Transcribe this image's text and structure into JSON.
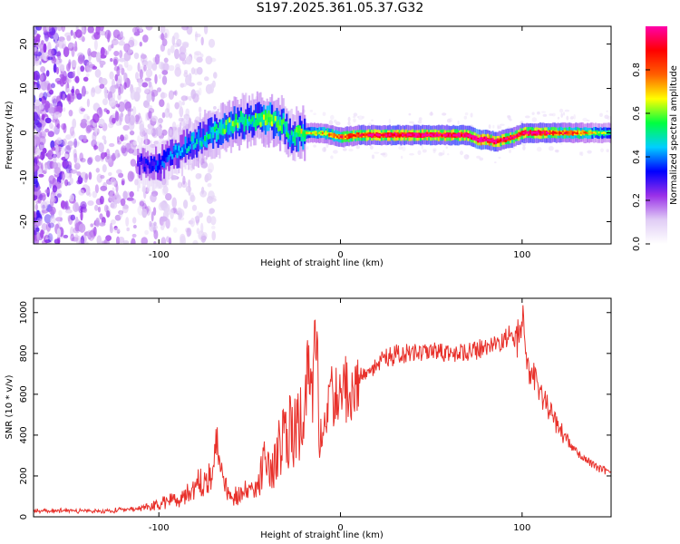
{
  "title": "S197.2025.361.05.37.G32",
  "chart_data": [
    {
      "type": "heatmap",
      "xlabel": "Height of straight line (km)",
      "ylabel": "Frequency (Hz)",
      "xlim": [
        -169,
        149
      ],
      "ylim": [
        -25,
        24
      ],
      "xticks": [
        -100,
        0,
        100
      ],
      "yticks": [
        -20,
        -10,
        0,
        10,
        20
      ],
      "colorbar": {
        "label": "Normalized spectral amplitude",
        "range": [
          0,
          1
        ],
        "ticks": [
          "0.0",
          "0.2",
          "0.4",
          "0.6",
          "0.8"
        ],
        "colors": [
          "#ffffff",
          "#e0ccf5",
          "#9a30e8",
          "#0000ff",
          "#00cfff",
          "#00ff40",
          "#ffff00",
          "#ff6000",
          "#ff0000",
          "#ff00aa"
        ]
      },
      "ridge": {
        "x": [
          -110,
          -100,
          -90,
          -80,
          -70,
          -60,
          -50,
          -40,
          -32,
          -28,
          -22,
          -10,
          0,
          10,
          20,
          40,
          60,
          70,
          75,
          80,
          85,
          90,
          95,
          100,
          110,
          120,
          130,
          140,
          149
        ],
        "freq": [
          -7,
          -7,
          -4,
          -2,
          0,
          2,
          3,
          3,
          2,
          -1,
          0,
          0,
          -1,
          -0.5,
          -0.5,
          -0.5,
          -0.5,
          -0.5,
          -1.5,
          -1.5,
          -2,
          -1.5,
          -1,
          0,
          0,
          0,
          0,
          0,
          0
        ],
        "amp": [
          0.25,
          0.3,
          0.35,
          0.4,
          0.45,
          0.5,
          0.45,
          0.55,
          0.5,
          0.4,
          0.55,
          0.6,
          0.75,
          0.8,
          0.85,
          0.9,
          0.88,
          0.9,
          1.0,
          0.95,
          0.9,
          0.85,
          0.8,
          0.85,
          0.85,
          0.75,
          0.7,
          0.55,
          0.5
        ]
      }
    },
    {
      "type": "line",
      "xlabel": "Height of straight line (km)",
      "ylabel": "SNR (10 * v/v)",
      "xlim": [
        -169,
        149
      ],
      "ylim": [
        0,
        1070
      ],
      "xticks": [
        -100,
        0,
        100
      ],
      "yticks": [
        0,
        200,
        400,
        600,
        800,
        1000
      ],
      "series": [
        {
          "name": "SNR",
          "color": "#e8302a",
          "x": [
            -169,
            -150,
            -130,
            -110,
            -100,
            -95,
            -90,
            -85,
            -80,
            -75,
            -70,
            -68,
            -65,
            -62,
            -60,
            -55,
            -50,
            -45,
            -42,
            -40,
            -38,
            -35,
            -30,
            -25,
            -20,
            -18,
            -15,
            -13,
            -12,
            -10,
            -8,
            -5,
            0,
            5,
            10,
            15,
            20,
            25,
            30,
            40,
            50,
            60,
            70,
            80,
            85,
            90,
            95,
            98,
            100,
            102,
            105,
            110,
            115,
            120,
            125,
            130,
            135,
            140,
            145,
            149
          ],
          "y": [
            30,
            30,
            28,
            40,
            60,
            80,
            90,
            110,
            150,
            180,
            250,
            330,
            200,
            120,
            100,
            110,
            130,
            160,
            300,
            250,
            200,
            320,
            420,
            400,
            500,
            700,
            600,
            900,
            350,
            450,
            550,
            580,
            620,
            640,
            680,
            720,
            750,
            780,
            790,
            800,
            800,
            800,
            810,
            820,
            840,
            860,
            900,
            870,
            1000,
            780,
            700,
            620,
            520,
            440,
            370,
            320,
            280,
            250,
            230,
            230
          ]
        }
      ]
    }
  ]
}
